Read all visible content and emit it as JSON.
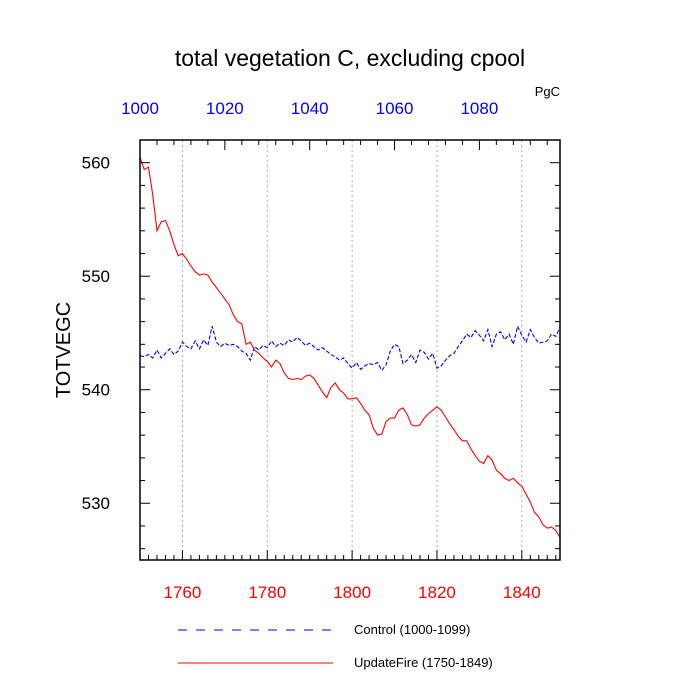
{
  "chart_data": {
    "type": "line",
    "title": "total vegetation C, excluding cpool",
    "units": "PgC",
    "ylabel": "TOTVEGC",
    "ylim": [
      525,
      562
    ],
    "yticks": [
      530,
      540,
      550,
      560
    ],
    "x_bottom": {
      "lim": [
        1750,
        1849
      ],
      "ticks": [
        1760,
        1780,
        1800,
        1820,
        1840
      ],
      "color": "#ff0000"
    },
    "x_top": {
      "lim": [
        1000,
        1099
      ],
      "ticks": [
        1000,
        1020,
        1040,
        1060,
        1080
      ],
      "color": "#0000ff"
    },
    "grid": "vertical dotted at bottom ticks",
    "legend_position": "bottom",
    "series": [
      {
        "name": "Control (1000-1099)",
        "axis": "top",
        "color": "#0000ff",
        "style": "dashed",
        "x": [
          1000,
          1001,
          1002,
          1003,
          1004,
          1005,
          1006,
          1007,
          1008,
          1009,
          1010,
          1011,
          1012,
          1013,
          1014,
          1015,
          1016,
          1017,
          1018,
          1019,
          1020,
          1021,
          1022,
          1023,
          1024,
          1025,
          1026,
          1027,
          1028,
          1029,
          1030,
          1031,
          1032,
          1033,
          1034,
          1035,
          1036,
          1037,
          1038,
          1039,
          1040,
          1041,
          1042,
          1043,
          1044,
          1045,
          1046,
          1047,
          1048,
          1049,
          1050,
          1051,
          1052,
          1053,
          1054,
          1055,
          1056,
          1057,
          1058,
          1059,
          1060,
          1061,
          1062,
          1063,
          1064,
          1065,
          1066,
          1067,
          1068,
          1069,
          1070,
          1071,
          1072,
          1073,
          1074,
          1075,
          1076,
          1077,
          1078,
          1079,
          1080,
          1081,
          1082,
          1083,
          1084,
          1085,
          1086,
          1087,
          1088,
          1089,
          1090,
          1091,
          1092,
          1093,
          1094,
          1095,
          1096,
          1097,
          1098,
          1099
        ],
        "y": [
          543.0,
          542.9,
          543.1,
          542.8,
          543.5,
          542.8,
          543.2,
          543.6,
          543.1,
          543.4,
          544.2,
          543.8,
          543.6,
          544.3,
          543.6,
          544.4,
          543.9,
          545.6,
          544.2,
          543.8,
          544.1,
          543.9,
          544.0,
          543.8,
          543.4,
          543.2,
          542.6,
          543.8,
          543.5,
          543.9,
          543.7,
          544.3,
          543.8,
          544.1,
          543.9,
          544.4,
          544.2,
          544.6,
          544.3,
          543.9,
          544.1,
          543.8,
          543.5,
          543.7,
          543.4,
          543.1,
          542.9,
          542.6,
          542.8,
          542.3,
          541.9,
          542.4,
          541.8,
          542.1,
          542.3,
          542.2,
          542.4,
          541.7,
          542.2,
          543.4,
          544.0,
          543.8,
          542.3,
          542.6,
          543.1,
          542.4,
          543.5,
          543.3,
          542.7,
          543.2,
          541.9,
          542.1,
          542.6,
          543.0,
          543.2,
          543.8,
          544.3,
          544.9,
          544.6,
          545.2,
          544.8,
          544.3,
          545.3,
          543.8,
          544.9,
          545.1,
          544.4,
          544.9,
          544.0,
          545.6,
          544.8,
          544.2,
          545.3,
          544.6,
          544.1,
          544.2,
          544.3,
          544.9,
          544.7,
          545.5
        ]
      },
      {
        "name": "UpdateFire (1750-1849)",
        "axis": "bottom",
        "color": "#ff0000",
        "style": "solid",
        "x": [
          1750,
          1751,
          1752,
          1753,
          1754,
          1755,
          1756,
          1757,
          1758,
          1759,
          1760,
          1761,
          1762,
          1763,
          1764,
          1765,
          1766,
          1767,
          1768,
          1769,
          1770,
          1771,
          1772,
          1773,
          1774,
          1775,
          1776,
          1777,
          1778,
          1779,
          1780,
          1781,
          1782,
          1783,
          1784,
          1785,
          1786,
          1787,
          1788,
          1789,
          1790,
          1791,
          1792,
          1793,
          1794,
          1795,
          1796,
          1797,
          1798,
          1799,
          1800,
          1801,
          1802,
          1803,
          1804,
          1805,
          1806,
          1807,
          1808,
          1809,
          1810,
          1811,
          1812,
          1813,
          1814,
          1815,
          1816,
          1817,
          1818,
          1819,
          1820,
          1821,
          1822,
          1823,
          1824,
          1825,
          1826,
          1827,
          1828,
          1829,
          1830,
          1831,
          1832,
          1833,
          1834,
          1835,
          1836,
          1837,
          1838,
          1839,
          1840,
          1841,
          1842,
          1843,
          1844,
          1845,
          1846,
          1847,
          1848,
          1849
        ],
        "y": [
          560.5,
          559.4,
          559.6,
          557.2,
          554.0,
          554.8,
          554.9,
          554.0,
          552.8,
          551.8,
          552.0,
          551.5,
          550.9,
          550.4,
          550.1,
          550.2,
          550.1,
          549.5,
          549.0,
          548.5,
          548.0,
          547.5,
          546.6,
          546.0,
          545.8,
          544.0,
          544.2,
          543.5,
          543.2,
          542.8,
          542.5,
          542.0,
          542.6,
          542.3,
          541.5,
          541.0,
          540.9,
          541.0,
          540.9,
          541.2,
          541.3,
          541.0,
          540.4,
          539.8,
          539.3,
          540.2,
          540.6,
          540.0,
          539.7,
          539.2,
          539.2,
          539.3,
          538.8,
          538.2,
          537.8,
          536.6,
          536.0,
          536.1,
          537.2,
          537.5,
          537.5,
          538.2,
          538.4,
          537.8,
          536.9,
          536.8,
          536.9,
          537.5,
          537.9,
          538.2,
          538.5,
          538.2,
          537.6,
          537.0,
          536.5,
          535.9,
          535.5,
          535.5,
          534.8,
          534.2,
          533.7,
          533.5,
          534.2,
          533.8,
          532.9,
          532.6,
          532.2,
          532.0,
          532.2,
          531.8,
          531.5,
          530.8,
          530.1,
          529.2,
          528.8,
          528.1,
          527.8,
          527.9,
          527.6,
          527.0
        ]
      }
    ]
  }
}
